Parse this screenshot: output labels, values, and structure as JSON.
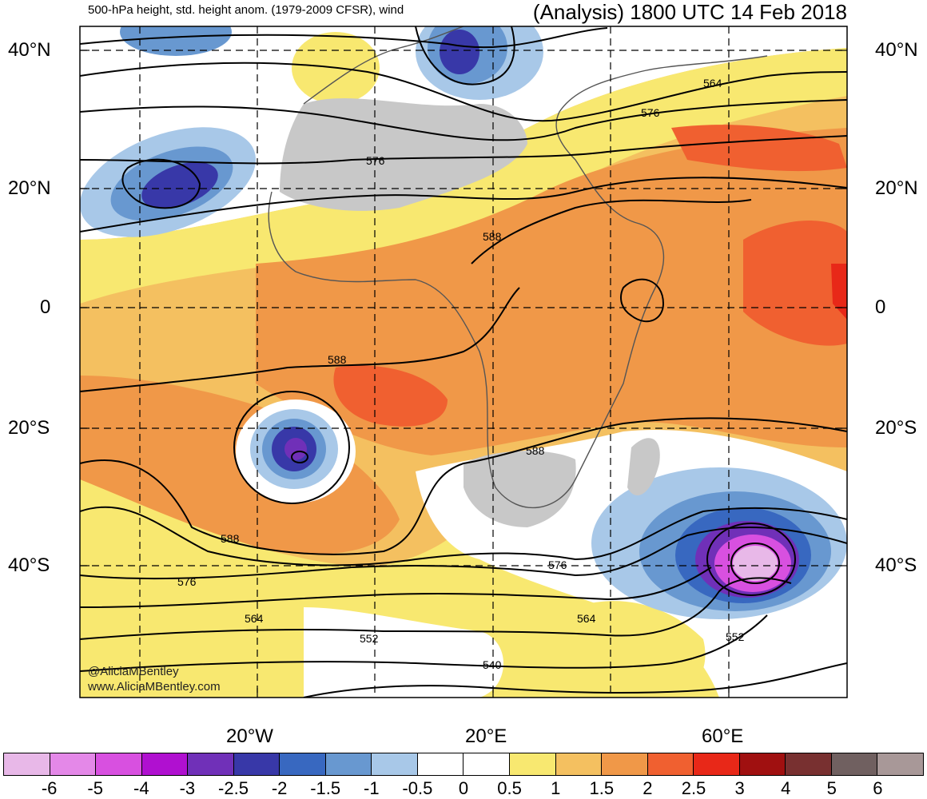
{
  "header": {
    "left_title": "500-hPa height, std. height anom. (1979-2009 CFSR), wind",
    "right_title": "(Analysis) 1800 UTC 14 Feb 2018"
  },
  "axes": {
    "lat_labels": [
      "40°N",
      "20°N",
      "0",
      "20°S",
      "40°S"
    ],
    "lon_labels": [
      "20°W",
      "20°E",
      "60°E"
    ]
  },
  "contour_labels": [
    "564",
    "576",
    "576",
    "588",
    "588",
    "588",
    "588",
    "576",
    "564",
    "552",
    "540",
    "576",
    "564",
    "552"
  ],
  "credits": {
    "handle": "@AliciaMBentley",
    "website": "www.AliciaMBentley.com"
  },
  "colorbar": {
    "colors": [
      "#e8b8e8",
      "#e488e8",
      "#d850e0",
      "#b010d0",
      "#7030b8",
      "#3838a8",
      "#3868c0",
      "#6898d0",
      "#a8c8e8",
      "#ffffff",
      "#ffffff",
      "#f8e870",
      "#f4c060",
      "#f09848",
      "#f06030",
      "#e82818",
      "#a01010",
      "#783030",
      "#706060",
      "#a89898"
    ],
    "tick_labels": [
      "-6",
      "-5",
      "-4",
      "-3",
      "-2.5",
      "-2",
      "-1.5",
      "-1",
      "-0.5",
      "0",
      "0.5",
      "1",
      "1.5",
      "2",
      "2.5",
      "3",
      "4",
      "5",
      "6"
    ]
  },
  "colors": {
    "land_gray": "#c8c8c8",
    "border": "#555555",
    "contour": "#000000"
  }
}
